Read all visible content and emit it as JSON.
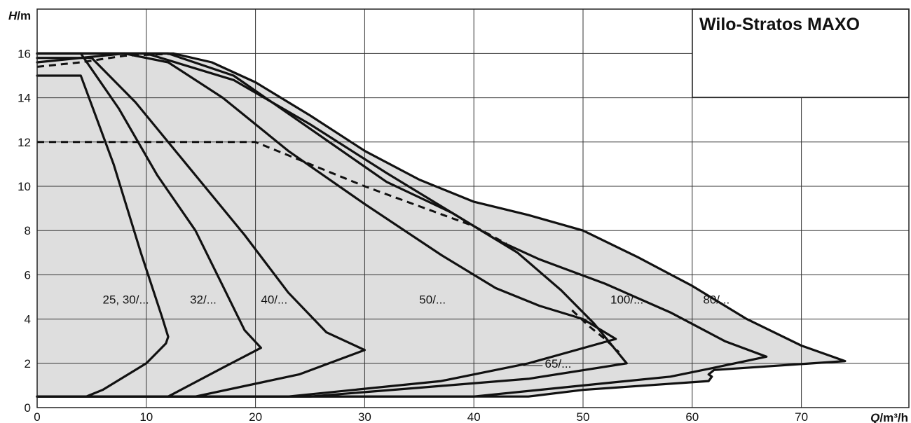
{
  "chart_data": {
    "type": "line",
    "title": "Wilo-Stratos MAXO",
    "xlabel": "Q",
    "xunit": "/m³/h",
    "ylabel": "H",
    "yunit": "/m",
    "xlim": [
      0,
      80
    ],
    "ylim": [
      0,
      18
    ],
    "xticks": [
      0,
      10,
      20,
      30,
      40,
      50,
      60,
      70
    ],
    "yticks": [
      0,
      2,
      4,
      6,
      8,
      10,
      12,
      14,
      16
    ],
    "grid": true,
    "series": [
      {
        "name": "25, 30/...",
        "label_at": [
          6,
          4.7
        ],
        "points": [
          [
            0,
            15
          ],
          [
            4,
            15
          ],
          [
            7,
            11
          ],
          [
            9.5,
            7
          ],
          [
            11.5,
            4
          ],
          [
            12,
            3.2
          ],
          [
            11.8,
            2.9
          ],
          [
            10,
            2
          ],
          [
            6,
            0.8
          ],
          [
            4.5,
            0.5
          ],
          [
            0,
            0.5
          ]
        ]
      },
      {
        "name": "32/...",
        "label_at": [
          14,
          4.7
        ],
        "points": [
          [
            0,
            16
          ],
          [
            4,
            16
          ],
          [
            7.5,
            13.5
          ],
          [
            11,
            10.5
          ],
          [
            14.5,
            8
          ],
          [
            17,
            5.5
          ],
          [
            19,
            3.5
          ],
          [
            20.5,
            2.7
          ],
          [
            17,
            1.8
          ],
          [
            12,
            0.5
          ],
          [
            0,
            0.5
          ]
        ]
      },
      {
        "name": "40/...",
        "label_at": [
          20.5,
          4.7
        ],
        "points": [
          [
            0,
            15.8
          ],
          [
            5,
            15.8
          ],
          [
            9,
            13.8
          ],
          [
            14,
            10.8
          ],
          [
            19,
            7.8
          ],
          [
            23,
            5.2
          ],
          [
            26.5,
            3.4
          ],
          [
            30,
            2.6
          ],
          [
            24,
            1.5
          ],
          [
            14.5,
            0.5
          ],
          [
            0,
            0.5
          ]
        ]
      },
      {
        "name": "50/...",
        "label_at": [
          35,
          4.7
        ],
        "points": [
          [
            0,
            15.6
          ],
          [
            8,
            16
          ],
          [
            12,
            15.6
          ],
          [
            17,
            14
          ],
          [
            23,
            11.6
          ],
          [
            30,
            9.2
          ],
          [
            37,
            6.9
          ],
          [
            42,
            5.4
          ],
          [
            46,
            4.6
          ],
          [
            50,
            4
          ],
          [
            53,
            3.1
          ],
          [
            45,
            2
          ],
          [
            37,
            1.2
          ],
          [
            23,
            0.5
          ],
          [
            0,
            0.5
          ]
        ]
      },
      {
        "name": "65/...",
        "label_at": [
          46.5,
          1.8
        ],
        "points": [
          [
            0,
            16
          ],
          [
            10,
            16
          ],
          [
            18,
            14.8
          ],
          [
            25,
            12.8
          ],
          [
            32,
            10.6
          ],
          [
            40,
            8.2
          ],
          [
            44,
            7
          ],
          [
            48,
            5.3
          ],
          [
            51,
            3.8
          ],
          [
            54,
            2
          ],
          [
            45,
            1.3
          ],
          [
            35,
            0.9
          ],
          [
            25,
            0.5
          ],
          [
            0,
            0.5
          ]
        ]
      },
      {
        "name": "100/...",
        "label_at": [
          52.5,
          4.7
        ],
        "points": [
          [
            0,
            16
          ],
          [
            12,
            16
          ],
          [
            18,
            15
          ],
          [
            25,
            12.6
          ],
          [
            32,
            10.2
          ],
          [
            38,
            8.8
          ],
          [
            42,
            7.6
          ],
          [
            46,
            6.7
          ],
          [
            52,
            5.6
          ],
          [
            58,
            4.3
          ],
          [
            63,
            3
          ],
          [
            66.8,
            2.3
          ],
          [
            62,
            1.8
          ],
          [
            58,
            1.4
          ],
          [
            50,
            1
          ],
          [
            40,
            0.5
          ],
          [
            0,
            0.5
          ]
        ]
      },
      {
        "name": "80/...",
        "label_at": [
          61,
          4.7
        ],
        "points": [
          [
            0,
            16
          ],
          [
            12.5,
            16
          ],
          [
            16,
            15.6
          ],
          [
            20,
            14.7
          ],
          [
            25,
            13.2
          ],
          [
            30,
            11.6
          ],
          [
            35,
            10.3
          ],
          [
            40,
            9.3
          ],
          [
            45,
            8.7
          ],
          [
            50,
            8
          ],
          [
            55,
            6.8
          ],
          [
            60,
            5.5
          ],
          [
            65,
            4
          ],
          [
            70,
            2.8
          ],
          [
            74,
            2.1
          ],
          [
            62,
            1.7
          ],
          [
            61.5,
            1.5
          ],
          [
            61.8,
            1.4
          ],
          [
            61.5,
            1.2
          ],
          [
            50,
            0.8
          ],
          [
            45,
            0.5
          ],
          [
            0,
            0.5
          ]
        ]
      }
    ],
    "dashed_series": [
      {
        "points": [
          [
            0,
            15.4
          ],
          [
            4,
            15.6
          ],
          [
            8,
            15.9
          ],
          [
            13,
            16
          ]
        ]
      },
      {
        "points": [
          [
            0,
            12
          ],
          [
            20,
            12
          ],
          [
            30,
            10
          ],
          [
            40,
            8.2
          ],
          [
            43,
            7.4
          ]
        ]
      },
      {
        "points": [
          [
            49,
            4.4
          ],
          [
            50.5,
            3.7
          ],
          [
            52,
            3.1
          ],
          [
            53.3,
            2.5
          ]
        ]
      }
    ]
  }
}
